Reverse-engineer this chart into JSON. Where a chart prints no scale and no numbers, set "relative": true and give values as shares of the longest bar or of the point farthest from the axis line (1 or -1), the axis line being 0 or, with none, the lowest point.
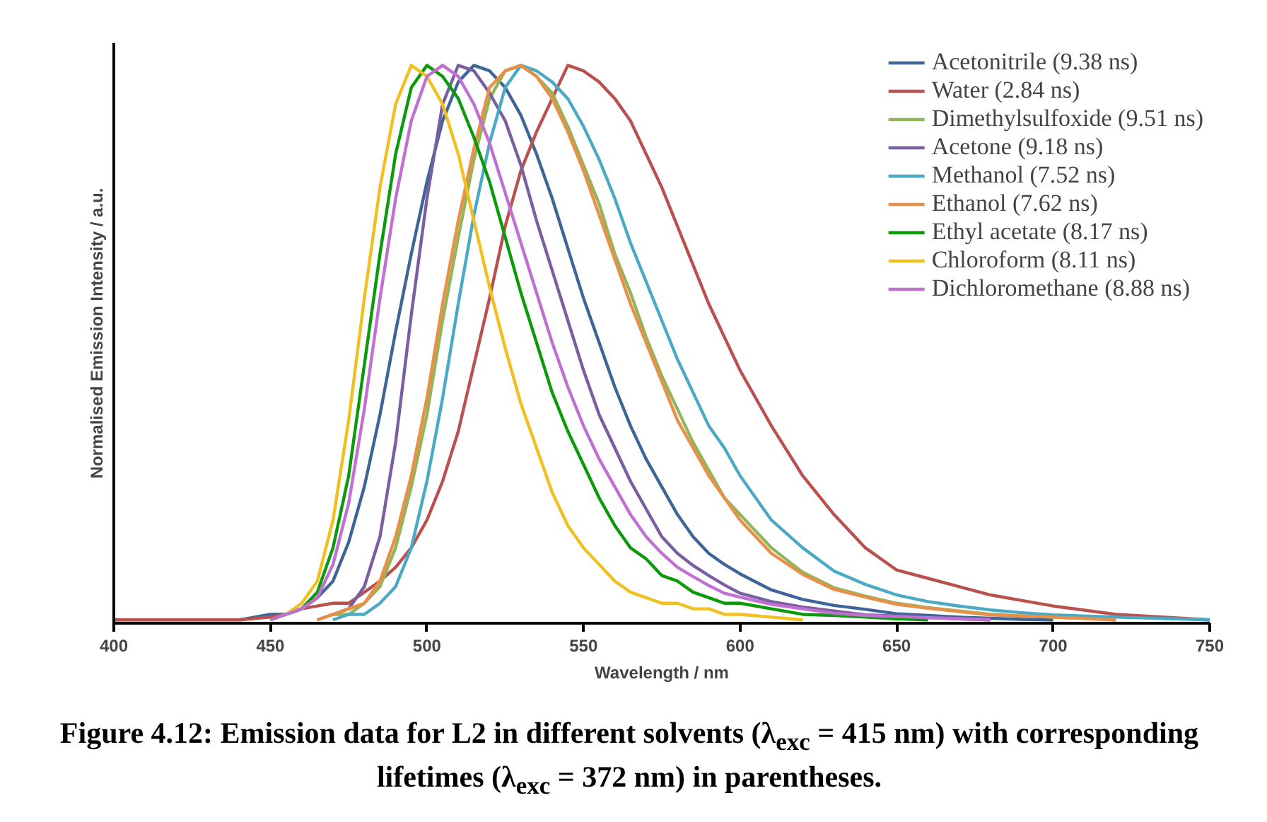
{
  "chart_data": {
    "type": "line",
    "relative": true,
    "legend": "top right",
    "grid": false,
    "tick_labels": "x",
    "xlabel": "Wavelength / nm",
    "ylabel": "Normalised Emission Intensity / a.u.",
    "annotations": [
      "Figure 4.12: Emission data for L2 in different solvents (λ$_{exc}$ = 415 nm) with corresponding lifetimes (λ$_{exc}$ = 372 nm) in parentheses."
    ],
    "xlim": [
      400,
      750
    ],
    "xticks": [
      400,
      450,
      500,
      550,
      600,
      650,
      700,
      750
    ],
    "x": [
      400,
      440,
      450,
      455,
      460,
      465,
      470,
      475,
      480,
      485,
      490,
      495,
      500,
      505,
      510,
      515,
      520,
      525,
      530,
      535,
      540,
      545,
      550,
      555,
      560,
      565,
      570,
      575,
      580,
      585,
      590,
      595,
      600,
      610,
      620,
      630,
      640,
      650,
      660,
      670,
      680,
      690,
      700,
      720,
      750
    ],
    "series": [
      {
        "name": "Acetonitrile (9.38 ns)",
        "color": "#3d6597",
        "values": [
          null,
          0,
          0.01,
          0.01,
          0.02,
          0.04,
          0.07,
          0.14,
          0.24,
          0.37,
          0.52,
          0.66,
          0.79,
          0.9,
          0.97,
          1,
          0.99,
          0.96,
          0.91,
          0.84,
          0.76,
          0.67,
          0.58,
          0.5,
          0.42,
          0.35,
          0.29,
          0.24,
          0.19,
          0.15,
          0.12,
          0.1,
          0.083,
          0.054,
          0.037,
          0.026,
          0.019,
          0.011,
          0.008,
          0.005,
          0.003,
          0.001,
          0,
          null,
          null
        ]
      },
      {
        "name": "Water (2.84 ns)",
        "color": "#b9514f",
        "values": [
          0,
          0,
          0.005,
          0.01,
          0.02,
          0.025,
          0.03,
          0.03,
          0.05,
          0.07,
          0.095,
          0.13,
          0.18,
          0.25,
          0.34,
          0.46,
          0.58,
          0.71,
          0.81,
          0.88,
          0.94,
          1,
          0.99,
          0.97,
          0.94,
          0.9,
          0.84,
          0.78,
          0.71,
          0.64,
          0.57,
          0.51,
          0.45,
          0.35,
          0.26,
          0.19,
          0.13,
          0.09,
          0.075,
          0.06,
          0.045,
          0.035,
          0.025,
          0.01,
          0
        ]
      },
      {
        "name": "Dimethylsulfoxide (9.51 ns)",
        "color": "#93b55a",
        "values": [
          null,
          null,
          null,
          null,
          null,
          0,
          0.01,
          0.01,
          0.03,
          0.06,
          0.13,
          0.24,
          0.37,
          0.54,
          0.69,
          0.83,
          0.94,
          0.99,
          1,
          0.98,
          0.95,
          0.89,
          0.82,
          0.75,
          0.66,
          0.59,
          0.51,
          0.44,
          0.38,
          0.32,
          0.27,
          0.22,
          0.19,
          0.13,
          0.086,
          0.058,
          0.043,
          0.03,
          0.022,
          0.016,
          0.01,
          0.007,
          0.005,
          0,
          null
        ]
      },
      {
        "name": "Acetone (9.18 ns)",
        "color": "#7a5fa0",
        "values": [
          null,
          null,
          null,
          null,
          null,
          0,
          0.01,
          0.02,
          0.06,
          0.15,
          0.32,
          0.55,
          0.76,
          0.93,
          1,
          0.99,
          0.95,
          0.9,
          0.82,
          0.72,
          0.63,
          0.54,
          0.45,
          0.37,
          0.31,
          0.25,
          0.2,
          0.15,
          0.12,
          0.098,
          0.08,
          0.063,
          0.048,
          0.033,
          0.023,
          0.016,
          0.009,
          0.007,
          0.004,
          0.002,
          0,
          null,
          null,
          null,
          null
        ]
      },
      {
        "name": "Methanol (7.52 ns)",
        "color": "#4aaac6",
        "values": [
          null,
          null,
          null,
          null,
          null,
          null,
          0,
          0.01,
          0.01,
          0.03,
          0.06,
          0.13,
          0.25,
          0.4,
          0.57,
          0.73,
          0.86,
          0.96,
          1,
          0.99,
          0.97,
          0.94,
          0.89,
          0.83,
          0.76,
          0.68,
          0.61,
          0.54,
          0.47,
          0.41,
          0.35,
          0.31,
          0.26,
          0.18,
          0.13,
          0.088,
          0.064,
          0.045,
          0.033,
          0.025,
          0.018,
          0.013,
          0.009,
          0.005,
          0
        ]
      },
      {
        "name": "Ethanol (7.62 ns)",
        "color": "#e8904a",
        "values": [
          null,
          null,
          null,
          null,
          null,
          0,
          0.01,
          0.02,
          0.03,
          0.07,
          0.15,
          0.26,
          0.4,
          0.57,
          0.72,
          0.85,
          0.96,
          0.99,
          1,
          0.98,
          0.94,
          0.88,
          0.81,
          0.73,
          0.65,
          0.57,
          0.5,
          0.43,
          0.36,
          0.31,
          0.26,
          0.22,
          0.18,
          0.12,
          0.082,
          0.055,
          0.041,
          0.028,
          0.021,
          0.015,
          0.009,
          0.007,
          0.005,
          0,
          null
        ]
      },
      {
        "name": "Ethyl acetate (8.17 ns)",
        "color": "#0a9a0a",
        "values": [
          null,
          null,
          0,
          0.01,
          0.02,
          0.05,
          0.13,
          0.26,
          0.46,
          0.66,
          0.84,
          0.96,
          1,
          0.98,
          0.94,
          0.87,
          0.79,
          0.69,
          0.59,
          0.5,
          0.41,
          0.34,
          0.28,
          0.22,
          0.17,
          0.13,
          0.11,
          0.08,
          0.07,
          0.05,
          0.04,
          0.03,
          0.03,
          0.02,
          0.01,
          0.008,
          0.005,
          0.002,
          0,
          null,
          null,
          null,
          null,
          null,
          null
        ]
      },
      {
        "name": "Chloroform (8.11 ns)",
        "color": "#f0c020",
        "values": [
          null,
          null,
          0,
          0.01,
          0.03,
          0.07,
          0.18,
          0.36,
          0.58,
          0.78,
          0.93,
          1,
          0.98,
          0.93,
          0.84,
          0.72,
          0.6,
          0.49,
          0.39,
          0.31,
          0.23,
          0.17,
          0.13,
          0.1,
          0.07,
          0.05,
          0.04,
          0.03,
          0.03,
          0.02,
          0.02,
          0.01,
          0.01,
          0.005,
          0,
          null,
          null,
          null,
          null,
          null,
          null,
          null,
          null,
          null,
          null
        ]
      },
      {
        "name": "Dichloromethane (8.88 ns)",
        "color": "#c070d0",
        "values": [
          null,
          null,
          0,
          0.01,
          0.02,
          0.04,
          0.1,
          0.21,
          0.38,
          0.58,
          0.76,
          0.9,
          0.98,
          1,
          0.98,
          0.93,
          0.86,
          0.77,
          0.68,
          0.59,
          0.5,
          0.42,
          0.35,
          0.29,
          0.24,
          0.19,
          0.15,
          0.12,
          0.095,
          0.078,
          0.062,
          0.048,
          0.041,
          0.028,
          0.02,
          0.012,
          0.008,
          0.006,
          0.004,
          0.002,
          0,
          null,
          null,
          null,
          null
        ]
      }
    ]
  }
}
